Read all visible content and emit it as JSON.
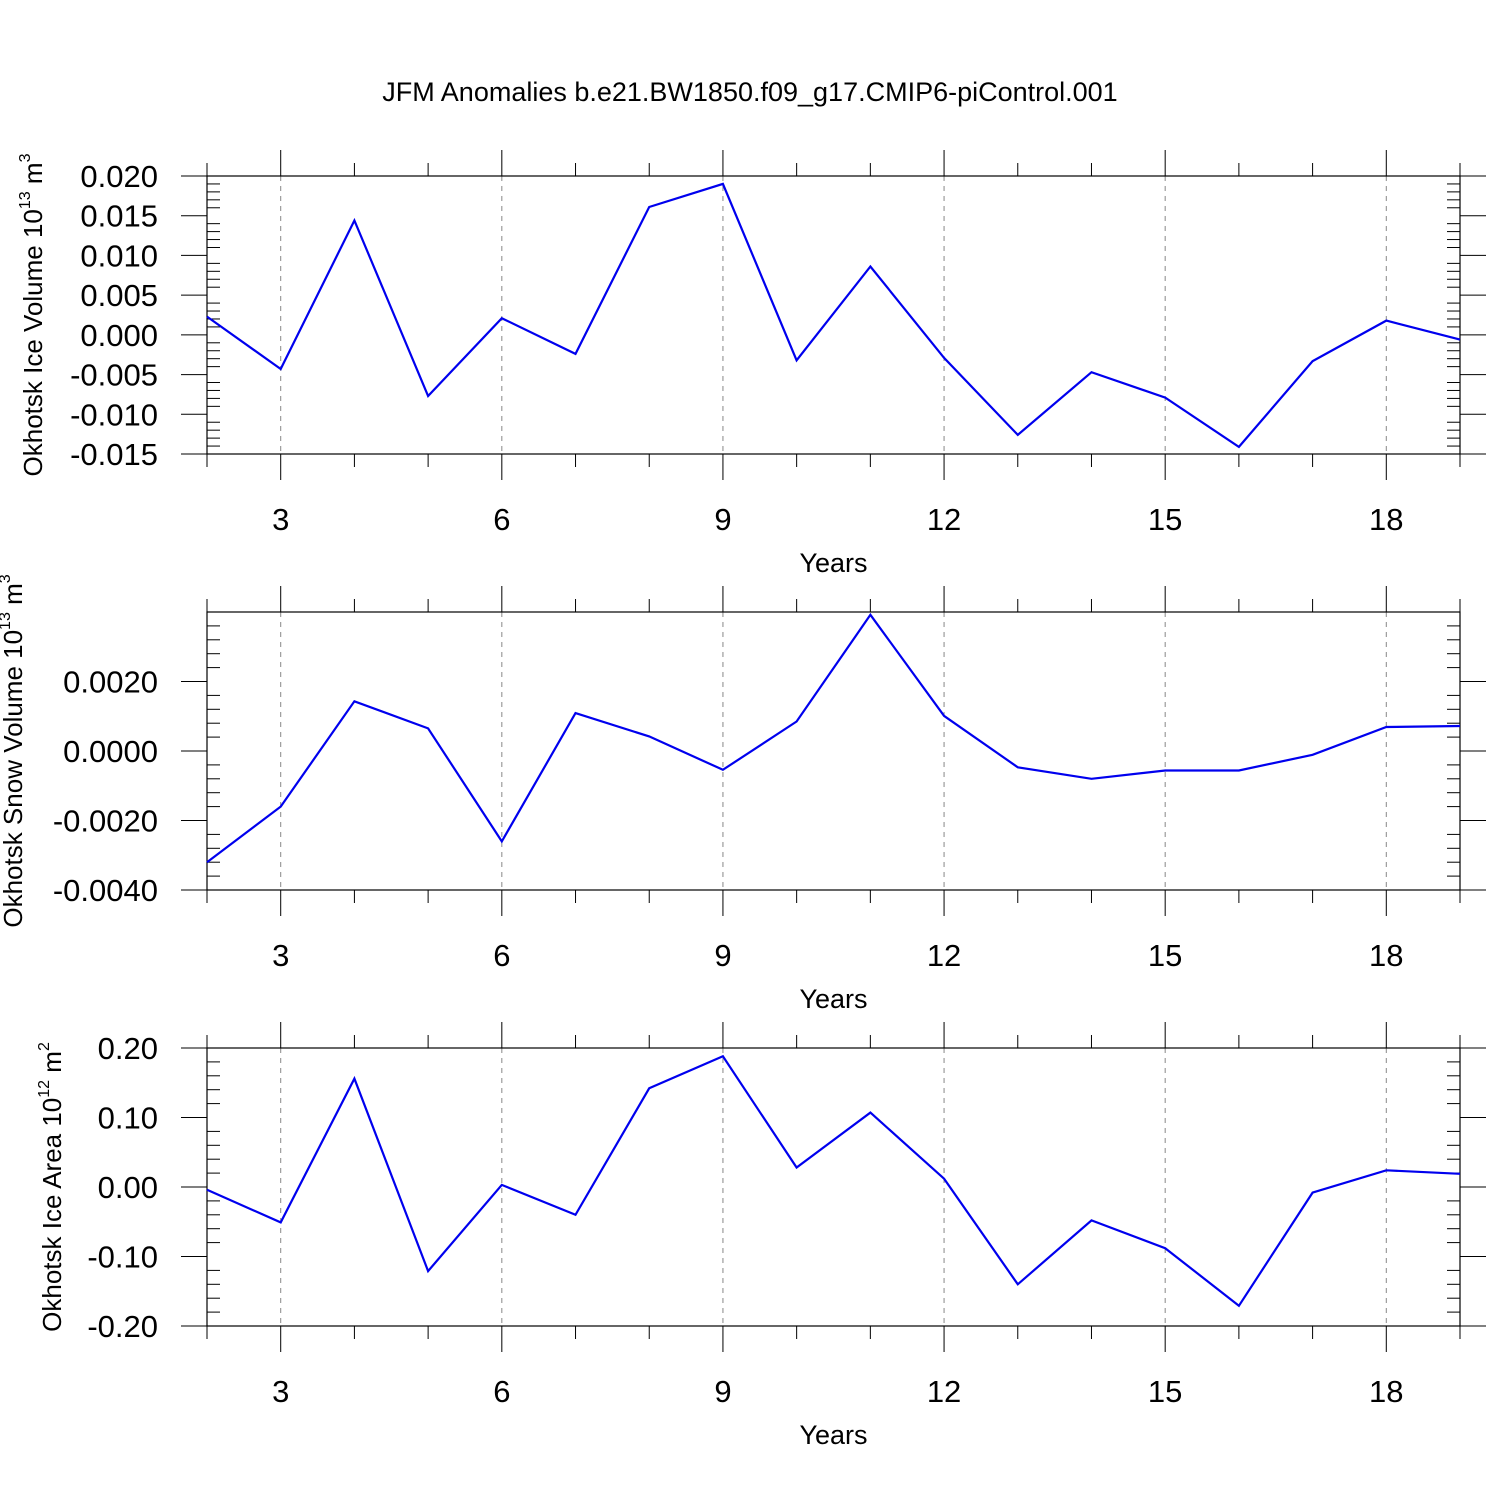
{
  "chart_data": [
    {
      "type": "line",
      "title": "JFM Anomalies b.e21.BW1850.f09_g17.CMIP6-piControl.001",
      "xlabel": "Years",
      "ylabel": {
        "main": "Okhotsk Ice Volume 10",
        "exp": "13",
        "unit": " m",
        "unit_exp": "3"
      },
      "xlim": [
        2,
        19
      ],
      "ylim": [
        -0.015,
        0.02
      ],
      "xticks": [
        3,
        6,
        9,
        12,
        15,
        18
      ],
      "xtick_labels": [
        "3",
        "6",
        "9",
        "12",
        "15",
        "18"
      ],
      "yticks": [
        -0.015,
        -0.01,
        -0.005,
        0.0,
        0.005,
        0.01,
        0.015,
        0.02
      ],
      "ytick_labels": [
        "-0.015",
        "-0.010",
        "-0.005",
        "0.000",
        "0.005",
        "0.010",
        "0.015",
        "0.020"
      ],
      "yminor_step": 0.001,
      "grid": "vertical dashed at major x ticks",
      "color": "#0000ee",
      "x": [
        2,
        3,
        4,
        5,
        6,
        7,
        8,
        9,
        10,
        11,
        12,
        13,
        14,
        15,
        16,
        17,
        18,
        19
      ],
      "values": [
        0.0023,
        -0.0043,
        0.0144,
        -0.0077,
        0.0021,
        -0.0024,
        0.0161,
        0.019,
        -0.0032,
        0.0086,
        -0.0029,
        -0.0126,
        -0.0047,
        -0.0079,
        -0.0141,
        -0.0033,
        0.0018,
        -0.0006
      ]
    },
    {
      "type": "line",
      "xlabel": "Years",
      "ylabel": {
        "main": "Okhotsk Snow Volume 10",
        "exp": "13",
        "unit": " m",
        "unit_exp": "3"
      },
      "xlim": [
        2,
        19
      ],
      "ylim": [
        -0.004,
        0.004
      ],
      "xticks": [
        3,
        6,
        9,
        12,
        15,
        18
      ],
      "xtick_labels": [
        "3",
        "6",
        "9",
        "12",
        "15",
        "18"
      ],
      "yticks": [
        -0.004,
        -0.002,
        0.0,
        0.002
      ],
      "ytick_labels": [
        "-0.0040",
        "-0.0020",
        "0.0000",
        "0.0020"
      ],
      "yminor_step": 0.0004,
      "grid": "vertical dashed at major x ticks",
      "color": "#0000ee",
      "x": [
        2,
        3,
        4,
        5,
        6,
        7,
        8,
        9,
        10,
        11,
        12,
        13,
        14,
        15,
        16,
        17,
        18,
        19
      ],
      "values": [
        -0.0032,
        -0.0016,
        0.00143,
        0.00065,
        -0.0026,
        0.00109,
        0.00042,
        -0.00054,
        0.00085,
        0.00392,
        0.00101,
        -0.00047,
        -0.0008,
        -0.00056,
        -0.00056,
        -0.00011,
        0.00069,
        0.00072
      ]
    },
    {
      "type": "line",
      "xlabel": "Years",
      "ylabel": {
        "main": "Okhotsk Ice Area 10",
        "exp": "12",
        "unit": " m",
        "unit_exp": "2"
      },
      "xlim": [
        2,
        19
      ],
      "ylim": [
        -0.2,
        0.2
      ],
      "xticks": [
        3,
        6,
        9,
        12,
        15,
        18
      ],
      "xtick_labels": [
        "3",
        "6",
        "9",
        "12",
        "15",
        "18"
      ],
      "yticks": [
        -0.2,
        -0.1,
        0.0,
        0.1,
        0.2
      ],
      "ytick_labels": [
        "-0.20",
        "-0.10",
        "0.00",
        "0.10",
        "0.20"
      ],
      "yminor_step": 0.02,
      "grid": "vertical dashed at major x ticks",
      "color": "#0000ee",
      "x": [
        2,
        3,
        4,
        5,
        6,
        7,
        8,
        9,
        10,
        11,
        12,
        13,
        14,
        15,
        16,
        17,
        18,
        19
      ],
      "values": [
        -0.004,
        -0.051,
        0.156,
        -0.121,
        0.003,
        -0.04,
        0.142,
        0.188,
        0.028,
        0.107,
        0.012,
        -0.14,
        -0.048,
        -0.088,
        -0.171,
        -0.008,
        0.024,
        0.019
      ]
    }
  ]
}
